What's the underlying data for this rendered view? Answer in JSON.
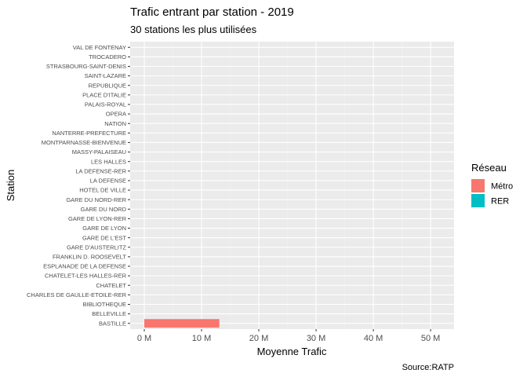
{
  "chart_data": {
    "type": "bar",
    "orientation": "horizontal",
    "title": "Trafic entrant par station - 2019",
    "subtitle": "30 stations les plus utilisées",
    "xlabel": "Moyenne Trafic",
    "ylabel": "Station",
    "caption": "Source:RATP",
    "xlim": [
      0,
      53000000
    ],
    "xticks": [
      0,
      10000000,
      20000000,
      30000000,
      40000000,
      50000000
    ],
    "xtick_labels": [
      "0 M",
      "10 M",
      "20 M",
      "30 M",
      "40 M",
      "50 M"
    ],
    "grid": true,
    "legend": {
      "title": "Réseau",
      "placement": "right",
      "entries": [
        {
          "label": "Métro",
          "color": "#F8766D"
        },
        {
          "label": "RER",
          "color": "#00BFC4"
        }
      ]
    },
    "categories": [
      "BASTILLE",
      "BELLEVILLE",
      "BIBLIOTHEQUE",
      "CHARLES DE GAULLE-ETOILE-RER",
      "CHATELET",
      "CHATELET-LES HALLES-RER",
      "ESPLANADE DE LA DEFENSE",
      "FRANKLIN D. ROOSEVELT",
      "GARE D'AUSTERLITZ",
      "GARE DE L'EST",
      "GARE DE LYON",
      "GARE DE LYON-RER",
      "GARE DU NORD",
      "GARE DU NORD-RER",
      "HOTEL DE VILLE",
      "LA DEFENSE",
      "LA DEFENSE-RER",
      "LES HALLES",
      "MASSY-PALAISEAU",
      "MONTPARNASSE-BIENVENUE",
      "NANTERRE-PREFECTURE",
      "NATION",
      "OPERA",
      "PALAIS-ROYAL",
      "PLACE D'ITALIE",
      "REPUBLIQUE",
      "SAINT-LAZARE",
      "STRASBOURG-SAINT-DENIS",
      "TROCADERO",
      "VAL DE FONTENAY"
    ],
    "series": [
      {
        "name": "Métro",
        "color": "#F8766D",
        "values": [
          13100000,
          0,
          0,
          0,
          0,
          0,
          0,
          0,
          0,
          0,
          0,
          0,
          0,
          0,
          0,
          0,
          0,
          0,
          0,
          0,
          0,
          0,
          0,
          0,
          0,
          0,
          0,
          0,
          0,
          0
        ]
      }
    ]
  }
}
